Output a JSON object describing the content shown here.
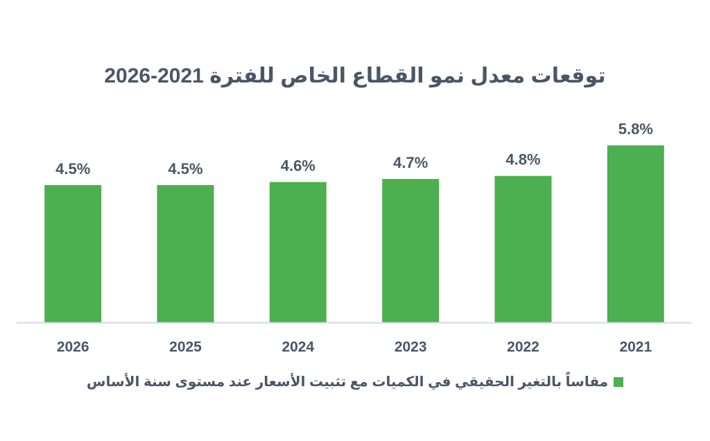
{
  "colors": {
    "bar": "#4caf50",
    "text": "#4a5668",
    "axis": "#d4d9e2"
  },
  "chart_data": {
    "type": "bar",
    "title": "توقعات معدل نمو القطاع الخاص للفترة 2021-2026",
    "categories": [
      "2021",
      "2022",
      "2023",
      "2024",
      "2025",
      "2026"
    ],
    "series": [
      {
        "name": "مقاساً بالتغير الحقيقي في الكميات مع تثبيت الأسعار عند مستوى سنة الأساس",
        "values": [
          5.8,
          4.8,
          4.7,
          4.6,
          4.5,
          4.5
        ]
      }
    ],
    "data_labels": [
      "5.8%",
      "4.8%",
      "4.7%",
      "4.6%",
      "4.5%",
      "4.5%"
    ],
    "x_direction": "right-to-left",
    "ylim": [
      0,
      6.7
    ],
    "grid": false,
    "legend_position": "bottom"
  }
}
